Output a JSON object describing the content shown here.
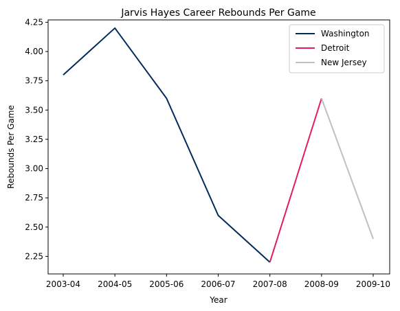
{
  "chart_data": {
    "type": "line",
    "title": "Jarvis Hayes Career Rebounds Per Game",
    "xlabel": "Year",
    "ylabel": "Rebounds Per Game",
    "categories": [
      "2003-04",
      "2004-05",
      "2005-06",
      "2006-07",
      "2007-08",
      "2008-09",
      "2009-10"
    ],
    "ylim": [
      2.1,
      4.27
    ],
    "yticks": [
      2.25,
      2.5,
      2.75,
      3.0,
      3.25,
      3.5,
      3.75,
      4.0,
      4.25
    ],
    "ytick_labels": [
      "2.25",
      "2.50",
      "2.75",
      "3.00",
      "3.25",
      "3.50",
      "3.75",
      "4.00",
      "4.25"
    ],
    "grid": false,
    "legend_position": "top-right",
    "series": [
      {
        "name": "Washington",
        "color": "#002B5C",
        "x": [
          "2003-04",
          "2004-05",
          "2005-06",
          "2006-07",
          "2007-08"
        ],
        "values": [
          3.8,
          4.2,
          3.6,
          2.6,
          2.2
        ]
      },
      {
        "name": "Detroit",
        "color": "#E31C5A",
        "x": [
          "2007-08",
          "2008-09"
        ],
        "values": [
          2.2,
          3.6
        ]
      },
      {
        "name": "New Jersey",
        "color": "#C0C0C0",
        "x": [
          "2008-09",
          "2009-10"
        ],
        "values": [
          3.6,
          2.4
        ]
      }
    ]
  }
}
